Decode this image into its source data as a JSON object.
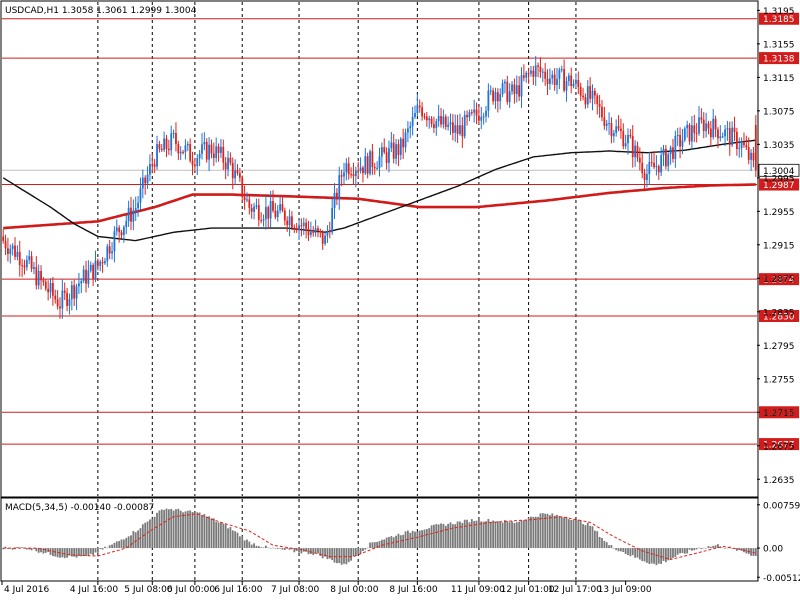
{
  "chart_data": {
    "type": "candlestick",
    "symbol_header": "USDCAD,H1  1.3058 1.3061 1.2999 1.3004",
    "colors": {
      "bull": "#1e73d6",
      "bear": "#e0211b",
      "hline": "#d21b1b",
      "ma_fast": "#111111",
      "ma_slow": "#d11a1a",
      "macd_hist": "#7a7a7a",
      "macd_signal": "#e0211b",
      "grid": "#000000"
    },
    "price_axis": {
      "min": 1.2615,
      "max": 1.3205,
      "ticks": [
        "1.3195",
        "1.3155",
        "1.3115",
        "1.3075",
        "1.3035",
        "1.2995",
        "1.2955",
        "1.2915",
        "1.2875",
        "1.2835",
        "1.2795",
        "1.2755",
        "1.2715",
        "1.2675",
        "1.2635"
      ]
    },
    "current_price": {
      "label": "1.3004",
      "value": 1.3004
    },
    "levels": [
      {
        "label": "1.3185",
        "value": 1.3185
      },
      {
        "label": "1.3138",
        "value": 1.3138
      },
      {
        "label": "1.2987",
        "value": 1.2987
      },
      {
        "label": "1.2874",
        "value": 1.2874
      },
      {
        "label": "1.2830",
        "value": 1.283
      },
      {
        "label": "1.2715",
        "value": 1.2715
      },
      {
        "label": "1.2677",
        "value": 1.2677
      }
    ],
    "x_labels": [
      "4 Jul 2016",
      "4 Jul 16:00",
      "5 Jul 08:00",
      "6 Jul 00:00",
      "6 Jul 16:00",
      "7 Jul 08:00",
      "8 Jul 00:00",
      "8 Jul 16:00",
      "11 Jul 09:00",
      "12 Jul 01:00",
      "12 Jul 17:00",
      "13 Jul 09:00"
    ],
    "day_separators": [
      "4 Jul 16:00",
      "5 Jul 08:00",
      "6 Jul 00:00",
      "6 Jul 16:00",
      "7 Jul 08:00",
      "8 Jul 00:00",
      "8 Jul 16:00",
      "11 Jul 09:00",
      "12 Jul 01:00",
      "12 Jul 17:00"
    ],
    "close_anchors": [
      [
        0,
        1.292
      ],
      [
        8,
        1.29
      ],
      [
        16,
        1.287
      ],
      [
        24,
        1.2845
      ],
      [
        32,
        1.287
      ],
      [
        40,
        1.289
      ],
      [
        48,
        1.293
      ],
      [
        56,
        1.296
      ],
      [
        64,
        1.302
      ],
      [
        72,
        1.304
      ],
      [
        80,
        1.302
      ],
      [
        88,
        1.303
      ],
      [
        96,
        1.301
      ],
      [
        104,
        1.296
      ],
      [
        112,
        1.2955
      ],
      [
        120,
        1.295
      ],
      [
        128,
        1.2935
      ],
      [
        136,
        1.292
      ],
      [
        144,
        1.301
      ],
      [
        152,
        1.301
      ],
      [
        160,
        1.302
      ],
      [
        168,
        1.303
      ],
      [
        176,
        1.308
      ],
      [
        184,
        1.306
      ],
      [
        192,
        1.305
      ],
      [
        200,
        1.307
      ],
      [
        208,
        1.31
      ],
      [
        216,
        1.3095
      ],
      [
        224,
        1.3125
      ],
      [
        232,
        1.3115
      ],
      [
        240,
        1.311
      ],
      [
        248,
        1.309
      ],
      [
        256,
        1.306
      ],
      [
        264,
        1.304
      ],
      [
        272,
        1.3
      ],
      [
        280,
        1.302
      ],
      [
        288,
        1.3045
      ],
      [
        296,
        1.306
      ],
      [
        304,
        1.305
      ],
      [
        312,
        1.3035
      ],
      [
        318,
        1.3004
      ]
    ],
    "ma_fast_anchors": [
      [
        0,
        1.2995
      ],
      [
        20,
        1.296
      ],
      [
        30,
        1.294
      ],
      [
        40,
        1.2925
      ],
      [
        56,
        1.292
      ],
      [
        72,
        1.293
      ],
      [
        88,
        1.2935
      ],
      [
        104,
        1.2935
      ],
      [
        120,
        1.2935
      ],
      [
        136,
        1.293
      ],
      [
        144,
        1.2935
      ],
      [
        168,
        1.296
      ],
      [
        192,
        1.2985
      ],
      [
        208,
        1.3005
      ],
      [
        224,
        1.302
      ],
      [
        240,
        1.3025
      ],
      [
        256,
        1.3027
      ],
      [
        272,
        1.3025
      ],
      [
        288,
        1.3028
      ],
      [
        304,
        1.3035
      ],
      [
        318,
        1.304
      ]
    ],
    "ma_slow_anchors": [
      [
        0,
        1.2935
      ],
      [
        40,
        1.2943
      ],
      [
        64,
        1.296
      ],
      [
        80,
        1.2975
      ],
      [
        96,
        1.2975
      ],
      [
        120,
        1.2973
      ],
      [
        150,
        1.297
      ],
      [
        176,
        1.296
      ],
      [
        200,
        1.296
      ],
      [
        230,
        1.2968
      ],
      [
        256,
        1.2977
      ],
      [
        280,
        1.2983
      ],
      [
        300,
        1.2986
      ],
      [
        318,
        1.2987
      ]
    ],
    "macd": {
      "title": "MACD(5,34,5) -0.00140 -0.00087",
      "min": -0.0056,
      "max": 0.0086,
      "ticks": [
        "0.00759",
        "0.00",
        "-0.00512"
      ],
      "hist_anchors": [
        [
          0,
          0.0
        ],
        [
          10,
          0.0
        ],
        [
          24,
          -0.0015
        ],
        [
          36,
          -0.0015
        ],
        [
          48,
          0.001
        ],
        [
          56,
          0.003
        ],
        [
          68,
          0.007
        ],
        [
          76,
          0.0065
        ],
        [
          84,
          0.006
        ],
        [
          96,
          0.0035
        ],
        [
          104,
          0.001
        ],
        [
          112,
          0.0
        ],
        [
          122,
          -0.0005
        ],
        [
          132,
          -0.001
        ],
        [
          144,
          -0.003
        ],
        [
          156,
          0.001
        ],
        [
          168,
          0.0025
        ],
        [
          184,
          0.004
        ],
        [
          200,
          0.005
        ],
        [
          216,
          0.0045
        ],
        [
          228,
          0.006
        ],
        [
          238,
          0.0055
        ],
        [
          248,
          0.004
        ],
        [
          256,
          0.0005
        ],
        [
          266,
          -0.0015
        ],
        [
          276,
          -0.003
        ],
        [
          284,
          -0.0015
        ],
        [
          294,
          0.0
        ],
        [
          302,
          0.0005
        ],
        [
          310,
          -0.0003
        ],
        [
          318,
          -0.0014
        ]
      ],
      "signal_anchors": [
        [
          0,
          0.0
        ],
        [
          14,
          0.0
        ],
        [
          28,
          -0.0012
        ],
        [
          40,
          -0.0014
        ],
        [
          52,
          0.0
        ],
        [
          62,
          0.003
        ],
        [
          72,
          0.0055
        ],
        [
          82,
          0.006
        ],
        [
          92,
          0.0045
        ],
        [
          104,
          0.003
        ],
        [
          114,
          0.0005
        ],
        [
          126,
          -0.0003
        ],
        [
          138,
          -0.0015
        ],
        [
          148,
          -0.0015
        ],
        [
          160,
          0.0005
        ],
        [
          176,
          0.002
        ],
        [
          190,
          0.0035
        ],
        [
          206,
          0.0045
        ],
        [
          224,
          0.005
        ],
        [
          236,
          0.0055
        ],
        [
          248,
          0.0045
        ],
        [
          258,
          0.002
        ],
        [
          270,
          -0.0005
        ],
        [
          282,
          -0.002
        ],
        [
          292,
          -0.001
        ],
        [
          304,
          0.0003
        ],
        [
          312,
          -0.0003
        ],
        [
          318,
          -0.0009
        ]
      ]
    }
  }
}
